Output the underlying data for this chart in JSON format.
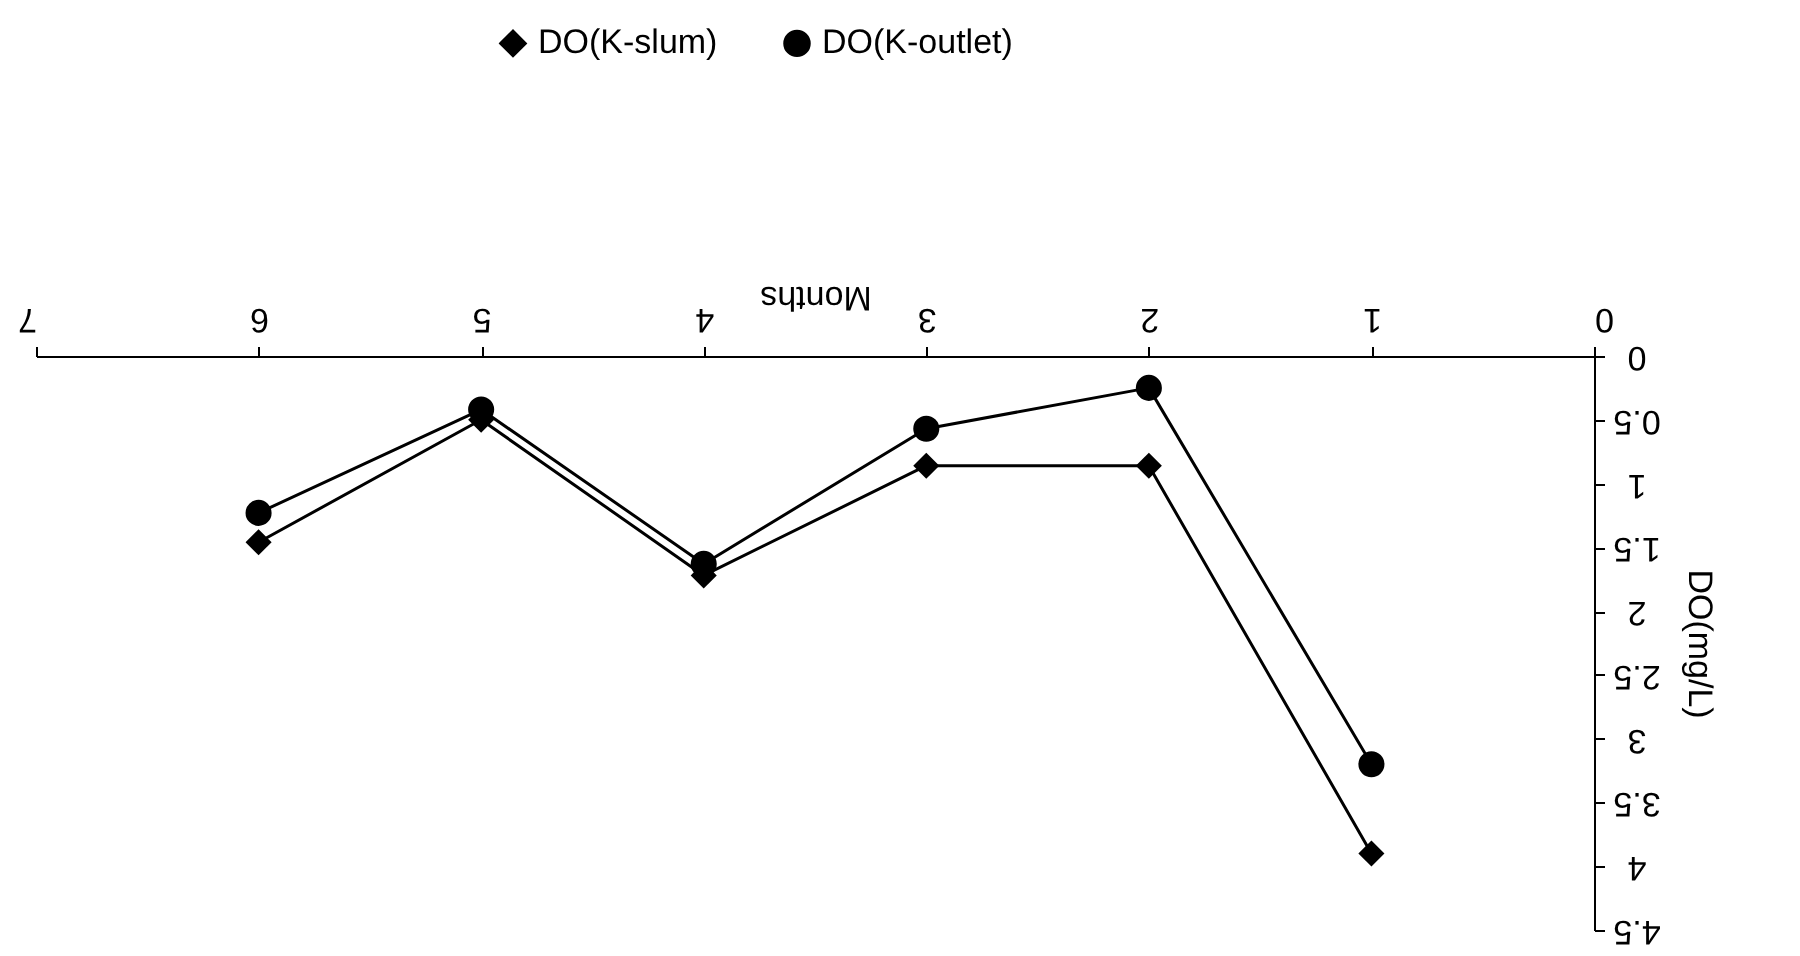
{
  "chart_data": {
    "type": "line",
    "xlabel": "Months",
    "ylabel": "DO(mg/L)",
    "x": [
      1,
      2,
      3,
      4,
      5,
      6
    ],
    "series": [
      {
        "name": "DO(K-slum)",
        "color": "#000000",
        "marker": "diamond",
        "values": [
          3.9,
          0.86,
          0.86,
          1.72,
          0.5,
          1.46
        ]
      },
      {
        "name": "DO(K-outlet)",
        "color": "#000000",
        "marker": "circle",
        "values": [
          3.2,
          0.25,
          0.57,
          1.63,
          0.42,
          1.23
        ]
      }
    ],
    "xlim": [
      7,
      0
    ],
    "xticks": [
      0,
      1,
      2,
      3,
      4,
      5,
      6,
      7
    ],
    "ylim": [
      4.5,
      0
    ],
    "yticks": [
      0,
      0.5,
      1,
      1.5,
      2,
      2.5,
      3,
      3.5,
      4,
      4.5
    ],
    "grid": false,
    "legend": "top",
    "line_style": "solid"
  }
}
